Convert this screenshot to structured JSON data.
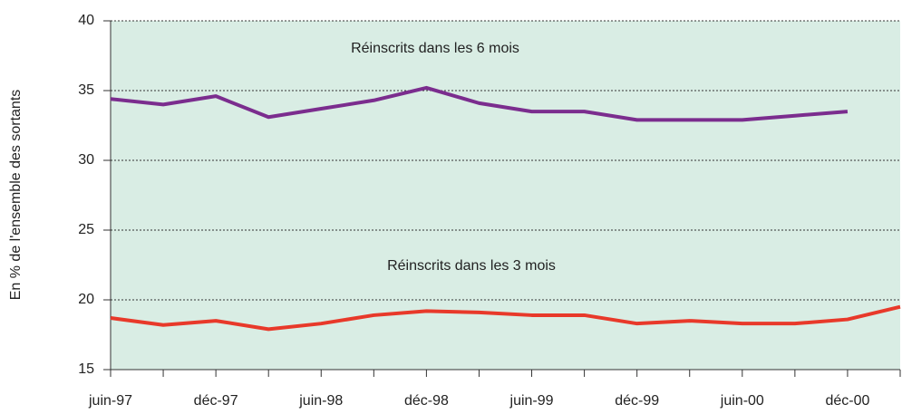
{
  "chart_data": {
    "type": "line",
    "y_label": "En % de l'ensemble des sortants",
    "categories": [
      "juin-97",
      null,
      "déc-97",
      null,
      "juin-98",
      null,
      "déc-98",
      null,
      "juin-99",
      null,
      "déc-99",
      null,
      "juin-00",
      null,
      "déc-00",
      null
    ],
    "series": [
      {
        "name": "Réinscrits dans les 6 mois",
        "color": "#7b2d8e",
        "values": [
          34.4,
          34.0,
          34.6,
          33.1,
          33.7,
          34.3,
          35.2,
          34.1,
          33.5,
          33.5,
          32.9,
          32.9,
          32.9,
          33.2,
          33.5,
          null
        ]
      },
      {
        "name": "Réinscrits dans les 3 mois",
        "color": "#e8392a",
        "values": [
          18.7,
          18.2,
          18.5,
          17.9,
          18.3,
          18.9,
          19.2,
          19.1,
          18.9,
          18.9,
          18.3,
          18.5,
          18.3,
          18.3,
          18.6,
          19.5
        ]
      }
    ],
    "ylim": [
      15,
      40
    ],
    "yticks": [
      15,
      20,
      25,
      30,
      35,
      40
    ],
    "grid": true
  }
}
